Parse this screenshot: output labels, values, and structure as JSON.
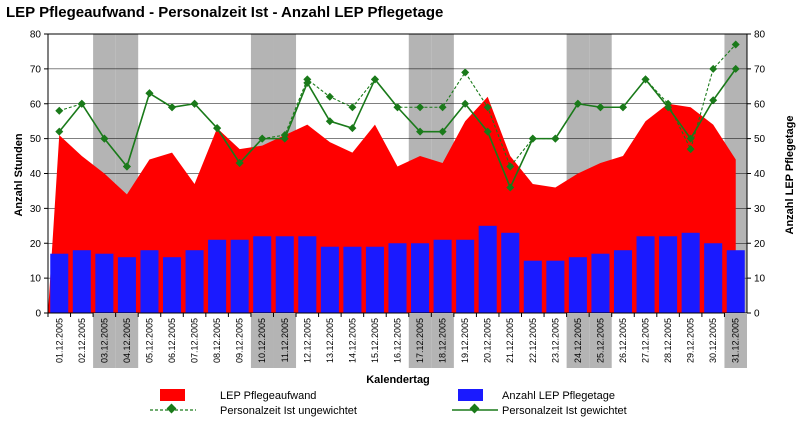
{
  "chart_data": {
    "type": "bar",
    "title": "LEP Pflegeaufwand - Personalzeit Ist - Anzahl LEP Pflegetage",
    "xlabel": "Kalendertag",
    "ylabel": "Anzahl Stunden",
    "y2label": "Anzahl LEP Pflegetage",
    "ylim": [
      0,
      80
    ],
    "y2lim": [
      0,
      80
    ],
    "yticks": [
      "0",
      "10",
      "20",
      "30",
      "40",
      "50",
      "60",
      "70",
      "80"
    ],
    "y2ticks": [
      "0",
      "10",
      "20",
      "30",
      "40",
      "50",
      "60",
      "70",
      "80"
    ],
    "grid": true,
    "legend_position": "bottom",
    "categories": [
      "01.12.2005",
      "02.12.2005",
      "03.12.2005",
      "04.12.2005",
      "05.12.2005",
      "06.12.2005",
      "07.12.2005",
      "08.12.2005",
      "09.12.2005",
      "10.12.2005",
      "11.12.2005",
      "12.12.2005",
      "13.12.2005",
      "14.12.2005",
      "15.12.2005",
      "16.12.2005",
      "17.12.2005",
      "18.12.2005",
      "19.12.2005",
      "20.12.2005",
      "21.12.2005",
      "22.12.2005",
      "23.12.2005",
      "24.12.2005",
      "25.12.2005",
      "26.12.2005",
      "27.12.2005",
      "28.12.2005",
      "29.12.2005",
      "30.12.2005",
      "31.12.2005"
    ],
    "weekend_days": [
      "03.12.2005",
      "04.12.2005",
      "10.12.2005",
      "11.12.2005",
      "17.12.2005",
      "18.12.2005",
      "24.12.2005",
      "25.12.2005",
      "31.12.2005"
    ],
    "series": [
      {
        "name": "LEP Pflegeaufwand",
        "type": "area",
        "color": "#ff0000",
        "values": [
          51,
          45,
          40,
          34,
          44,
          46,
          37,
          53,
          47,
          48,
          51,
          54,
          49,
          46,
          54,
          42,
          45,
          43,
          55,
          62,
          45,
          37,
          36,
          40,
          43,
          45,
          55,
          60,
          59,
          54,
          44
        ]
      },
      {
        "name": "Anzahl LEP Pflegetage",
        "type": "bar",
        "color": "#1a1aff",
        "values": [
          17,
          18,
          17,
          16,
          18,
          16,
          18,
          21,
          21,
          22,
          22,
          22,
          19,
          19,
          19,
          20,
          20,
          21,
          21,
          25,
          23,
          15,
          15,
          16,
          17,
          18,
          22,
          22,
          23,
          20,
          18
        ]
      },
      {
        "name": "Personalzeit Ist ungewichtet",
        "type": "line",
        "style": "dashed",
        "color": "#1a7a1a",
        "values": [
          58,
          60,
          50,
          42,
          63,
          59,
          60,
          53,
          43,
          50,
          51,
          67,
          62,
          59,
          67,
          59,
          59,
          59,
          69,
          59,
          42,
          50,
          50,
          60,
          59,
          59,
          67,
          60,
          47,
          70,
          77
        ]
      },
      {
        "name": "Personalzeit Ist gewichtet",
        "type": "line",
        "style": "solid",
        "color": "#1a7a1a",
        "values": [
          52,
          60,
          50,
          42,
          63,
          59,
          60,
          53,
          43,
          50,
          50,
          66,
          55,
          53,
          67,
          59,
          52,
          52,
          60,
          52,
          36,
          50,
          50,
          60,
          59,
          59,
          67,
          59,
          50,
          61,
          70
        ]
      }
    ]
  }
}
